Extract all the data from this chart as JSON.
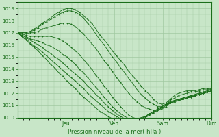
{
  "xlabel": "Pression niveau de la mer( hPa )",
  "bg_color": "#c8e6c8",
  "grid_color": "#a0c8a0",
  "line_color": "#1a6e1a",
  "ylim": [
    1010,
    1019.5
  ],
  "yticks": [
    1010,
    1011,
    1012,
    1013,
    1014,
    1015,
    1016,
    1017,
    1018,
    1019
  ],
  "day_labels": [
    "Jeu",
    "Ven",
    "Sam",
    "Dim"
  ],
  "n_hours": 96,
  "series": [
    [
      1017.0,
      1017.0,
      1017.0,
      1017.1,
      1017.3,
      1017.5,
      1017.8,
      1018.0,
      1018.2,
      1018.5,
      1018.7,
      1018.9,
      1019.0,
      1019.0,
      1018.9,
      1018.7,
      1018.4,
      1018.1,
      1017.8,
      1017.3,
      1016.8,
      1016.4,
      1016.0,
      1015.5,
      1015.1,
      1014.7,
      1014.3,
      1013.8,
      1013.4,
      1013.0,
      1012.6,
      1012.2,
      1011.9,
      1011.5,
      1011.2,
      1011.1,
      1011.2,
      1011.5,
      1011.8,
      1012.0,
      1012.1,
      1012.2,
      1012.2,
      1012.2,
      1012.3,
      1012.4,
      1012.4,
      1012.3
    ],
    [
      1017.0,
      1017.0,
      1017.0,
      1017.1,
      1017.2,
      1017.4,
      1017.7,
      1017.9,
      1018.1,
      1018.3,
      1018.5,
      1018.7,
      1018.8,
      1018.8,
      1018.7,
      1018.5,
      1018.2,
      1017.8,
      1017.4,
      1016.9,
      1016.4,
      1016.0,
      1015.5,
      1015.0,
      1014.6,
      1014.1,
      1013.7,
      1013.2,
      1012.8,
      1012.3,
      1011.9,
      1011.6,
      1011.3,
      1011.1,
      1010.9,
      1010.9,
      1011.1,
      1011.4,
      1011.6,
      1011.8,
      1011.9,
      1012.0,
      1012.1,
      1012.1,
      1012.2,
      1012.3,
      1012.3,
      1012.4
    ],
    [
      1017.0,
      1016.9,
      1016.9,
      1017.0,
      1017.0,
      1017.1,
      1017.3,
      1017.4,
      1017.5,
      1017.6,
      1017.7,
      1017.8,
      1017.8,
      1017.7,
      1017.5,
      1017.2,
      1016.9,
      1016.5,
      1016.1,
      1015.7,
      1015.2,
      1014.7,
      1014.3,
      1013.8,
      1013.3,
      1012.9,
      1012.4,
      1012.0,
      1011.6,
      1011.3,
      1011.0,
      1010.8,
      1010.7,
      1010.6,
      1010.6,
      1010.7,
      1010.9,
      1011.2,
      1011.4,
      1011.5,
      1011.6,
      1011.7,
      1011.8,
      1011.8,
      1011.9,
      1012.0,
      1012.1,
      1012.2
    ],
    [
      1017.0,
      1016.9,
      1016.8,
      1016.7,
      1016.7,
      1016.7,
      1016.7,
      1016.7,
      1016.7,
      1016.6,
      1016.5,
      1016.3,
      1016.1,
      1015.8,
      1015.5,
      1015.2,
      1014.8,
      1014.4,
      1014.0,
      1013.5,
      1013.1,
      1012.6,
      1012.2,
      1011.7,
      1011.3,
      1010.9,
      1010.5,
      1010.2,
      1010.0,
      1009.9,
      1010.0,
      1010.1,
      1010.3,
      1010.5,
      1010.7,
      1010.9,
      1011.1,
      1011.3,
      1011.4,
      1011.5,
      1011.6,
      1011.7,
      1011.8,
      1011.9,
      1012.0,
      1012.1,
      1012.2,
      1012.3
    ],
    [
      1017.0,
      1016.8,
      1016.7,
      1016.5,
      1016.4,
      1016.3,
      1016.2,
      1016.0,
      1015.9,
      1015.7,
      1015.5,
      1015.2,
      1015.0,
      1014.7,
      1014.4,
      1014.0,
      1013.7,
      1013.3,
      1012.9,
      1012.5,
      1012.1,
      1011.7,
      1011.3,
      1010.9,
      1010.6,
      1010.3,
      1010.1,
      1009.9,
      1009.8,
      1009.8,
      1009.9,
      1010.1,
      1010.3,
      1010.5,
      1010.7,
      1010.9,
      1011.1,
      1011.3,
      1011.4,
      1011.5,
      1011.6,
      1011.7,
      1011.8,
      1011.9,
      1012.0,
      1012.1,
      1012.2,
      1012.3
    ],
    [
      1017.0,
      1016.8,
      1016.6,
      1016.4,
      1016.2,
      1016.0,
      1015.8,
      1015.5,
      1015.3,
      1015.0,
      1014.8,
      1014.5,
      1014.2,
      1013.9,
      1013.6,
      1013.3,
      1013.0,
      1012.6,
      1012.3,
      1011.9,
      1011.6,
      1011.2,
      1010.9,
      1010.6,
      1010.3,
      1010.1,
      1009.9,
      1009.8,
      1009.7,
      1009.7,
      1009.8,
      1010.0,
      1010.2,
      1010.4,
      1010.6,
      1010.8,
      1011.0,
      1011.2,
      1011.3,
      1011.4,
      1011.5,
      1011.6,
      1011.7,
      1011.8,
      1011.9,
      1012.0,
      1012.1,
      1012.2
    ],
    [
      1017.0,
      1016.7,
      1016.5,
      1016.2,
      1015.9,
      1015.7,
      1015.4,
      1015.1,
      1014.8,
      1014.5,
      1014.2,
      1013.9,
      1013.6,
      1013.3,
      1013.0,
      1012.7,
      1012.4,
      1012.0,
      1011.7,
      1011.4,
      1011.1,
      1010.8,
      1010.5,
      1010.3,
      1010.1,
      1009.9,
      1009.8,
      1009.7,
      1009.7,
      1009.7,
      1009.8,
      1010.0,
      1010.2,
      1010.4,
      1010.6,
      1010.8,
      1011.0,
      1011.2,
      1011.3,
      1011.4,
      1011.5,
      1011.6,
      1011.7,
      1011.8,
      1011.9,
      1012.0,
      1012.1,
      1012.2
    ],
    [
      1017.0,
      1016.7,
      1016.4,
      1016.1,
      1015.8,
      1015.5,
      1015.1,
      1014.8,
      1014.4,
      1014.1,
      1013.7,
      1013.4,
      1013.0,
      1012.7,
      1012.4,
      1012.0,
      1011.7,
      1011.4,
      1011.1,
      1010.8,
      1010.5,
      1010.3,
      1010.1,
      1009.9,
      1009.8,
      1009.7,
      1009.7,
      1009.7,
      1009.7,
      1009.8,
      1009.9,
      1010.1,
      1010.3,
      1010.5,
      1010.7,
      1010.9,
      1011.1,
      1011.2,
      1011.3,
      1011.4,
      1011.5,
      1011.6,
      1011.7,
      1011.8,
      1011.9,
      1012.0,
      1012.1,
      1012.2
    ]
  ]
}
